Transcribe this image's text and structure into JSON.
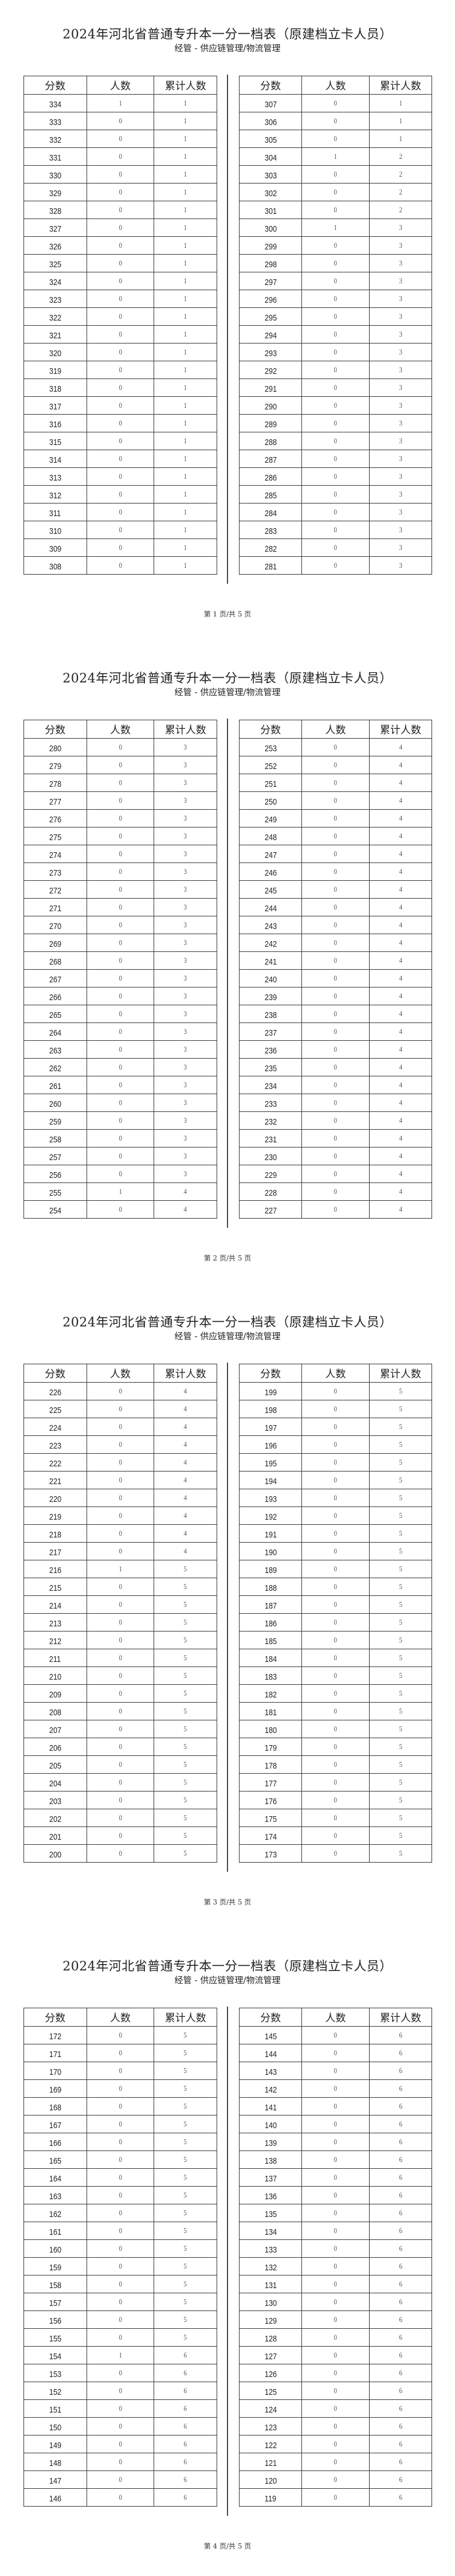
{
  "document": {
    "title": "2024年河北省普通专升本一分一档表（原建档立卡人员）",
    "subtitle": "经管 - 供应链管理/物流管理",
    "columns": [
      "分数",
      "人数",
      "累计人数"
    ]
  },
  "pages": [
    {
      "footer": "第 1 页/共 5 页",
      "left": [
        [
          "334",
          "1",
          "1"
        ],
        [
          "333",
          "0",
          "1"
        ],
        [
          "332",
          "0",
          "1"
        ],
        [
          "331",
          "0",
          "1"
        ],
        [
          "330",
          "0",
          "1"
        ],
        [
          "329",
          "0",
          "1"
        ],
        [
          "328",
          "0",
          "1"
        ],
        [
          "327",
          "0",
          "1"
        ],
        [
          "326",
          "0",
          "1"
        ],
        [
          "325",
          "0",
          "1"
        ],
        [
          "324",
          "0",
          "1"
        ],
        [
          "323",
          "0",
          "1"
        ],
        [
          "322",
          "0",
          "1"
        ],
        [
          "321",
          "0",
          "1"
        ],
        [
          "320",
          "0",
          "1"
        ],
        [
          "319",
          "0",
          "1"
        ],
        [
          "318",
          "0",
          "1"
        ],
        [
          "317",
          "0",
          "1"
        ],
        [
          "316",
          "0",
          "1"
        ],
        [
          "315",
          "0",
          "1"
        ],
        [
          "314",
          "0",
          "1"
        ],
        [
          "313",
          "0",
          "1"
        ],
        [
          "312",
          "0",
          "1"
        ],
        [
          "311",
          "0",
          "1"
        ],
        [
          "310",
          "0",
          "1"
        ],
        [
          "309",
          "0",
          "1"
        ],
        [
          "308",
          "0",
          "1"
        ]
      ],
      "right": [
        [
          "307",
          "0",
          "1"
        ],
        [
          "306",
          "0",
          "1"
        ],
        [
          "305",
          "0",
          "1"
        ],
        [
          "304",
          "1",
          "2"
        ],
        [
          "303",
          "0",
          "2"
        ],
        [
          "302",
          "0",
          "2"
        ],
        [
          "301",
          "0",
          "2"
        ],
        [
          "300",
          "1",
          "3"
        ],
        [
          "299",
          "0",
          "3"
        ],
        [
          "298",
          "0",
          "3"
        ],
        [
          "297",
          "0",
          "3"
        ],
        [
          "296",
          "0",
          "3"
        ],
        [
          "295",
          "0",
          "3"
        ],
        [
          "294",
          "0",
          "3"
        ],
        [
          "293",
          "0",
          "3"
        ],
        [
          "292",
          "0",
          "3"
        ],
        [
          "291",
          "0",
          "3"
        ],
        [
          "290",
          "0",
          "3"
        ],
        [
          "289",
          "0",
          "3"
        ],
        [
          "288",
          "0",
          "3"
        ],
        [
          "287",
          "0",
          "3"
        ],
        [
          "286",
          "0",
          "3"
        ],
        [
          "285",
          "0",
          "3"
        ],
        [
          "284",
          "0",
          "3"
        ],
        [
          "283",
          "0",
          "3"
        ],
        [
          "282",
          "0",
          "3"
        ],
        [
          "281",
          "0",
          "3"
        ]
      ]
    },
    {
      "footer": "第 2 页/共 5 页",
      "left": [
        [
          "280",
          "0",
          "3"
        ],
        [
          "279",
          "0",
          "3"
        ],
        [
          "278",
          "0",
          "3"
        ],
        [
          "277",
          "0",
          "3"
        ],
        [
          "276",
          "0",
          "3"
        ],
        [
          "275",
          "0",
          "3"
        ],
        [
          "274",
          "0",
          "3"
        ],
        [
          "273",
          "0",
          "3"
        ],
        [
          "272",
          "0",
          "3"
        ],
        [
          "271",
          "0",
          "3"
        ],
        [
          "270",
          "0",
          "3"
        ],
        [
          "269",
          "0",
          "3"
        ],
        [
          "268",
          "0",
          "3"
        ],
        [
          "267",
          "0",
          "3"
        ],
        [
          "266",
          "0",
          "3"
        ],
        [
          "265",
          "0",
          "3"
        ],
        [
          "264",
          "0",
          "3"
        ],
        [
          "263",
          "0",
          "3"
        ],
        [
          "262",
          "0",
          "3"
        ],
        [
          "261",
          "0",
          "3"
        ],
        [
          "260",
          "0",
          "3"
        ],
        [
          "259",
          "0",
          "3"
        ],
        [
          "258",
          "0",
          "3"
        ],
        [
          "257",
          "0",
          "3"
        ],
        [
          "256",
          "0",
          "3"
        ],
        [
          "255",
          "1",
          "4"
        ],
        [
          "254",
          "0",
          "4"
        ]
      ],
      "right": [
        [
          "253",
          "0",
          "4"
        ],
        [
          "252",
          "0",
          "4"
        ],
        [
          "251",
          "0",
          "4"
        ],
        [
          "250",
          "0",
          "4"
        ],
        [
          "249",
          "0",
          "4"
        ],
        [
          "248",
          "0",
          "4"
        ],
        [
          "247",
          "0",
          "4"
        ],
        [
          "246",
          "0",
          "4"
        ],
        [
          "245",
          "0",
          "4"
        ],
        [
          "244",
          "0",
          "4"
        ],
        [
          "243",
          "0",
          "4"
        ],
        [
          "242",
          "0",
          "4"
        ],
        [
          "241",
          "0",
          "4"
        ],
        [
          "240",
          "0",
          "4"
        ],
        [
          "239",
          "0",
          "4"
        ],
        [
          "238",
          "0",
          "4"
        ],
        [
          "237",
          "0",
          "4"
        ],
        [
          "236",
          "0",
          "4"
        ],
        [
          "235",
          "0",
          "4"
        ],
        [
          "234",
          "0",
          "4"
        ],
        [
          "233",
          "0",
          "4"
        ],
        [
          "232",
          "0",
          "4"
        ],
        [
          "231",
          "0",
          "4"
        ],
        [
          "230",
          "0",
          "4"
        ],
        [
          "229",
          "0",
          "4"
        ],
        [
          "228",
          "0",
          "4"
        ],
        [
          "227",
          "0",
          "4"
        ]
      ]
    },
    {
      "footer": "第 3 页/共 5 页",
      "left": [
        [
          "226",
          "0",
          "4"
        ],
        [
          "225",
          "0",
          "4"
        ],
        [
          "224",
          "0",
          "4"
        ],
        [
          "223",
          "0",
          "4"
        ],
        [
          "222",
          "0",
          "4"
        ],
        [
          "221",
          "0",
          "4"
        ],
        [
          "220",
          "0",
          "4"
        ],
        [
          "219",
          "0",
          "4"
        ],
        [
          "218",
          "0",
          "4"
        ],
        [
          "217",
          "0",
          "4"
        ],
        [
          "216",
          "1",
          "5"
        ],
        [
          "215",
          "0",
          "5"
        ],
        [
          "214",
          "0",
          "5"
        ],
        [
          "213",
          "0",
          "5"
        ],
        [
          "212",
          "0",
          "5"
        ],
        [
          "211",
          "0",
          "5"
        ],
        [
          "210",
          "0",
          "5"
        ],
        [
          "209",
          "0",
          "5"
        ],
        [
          "208",
          "0",
          "5"
        ],
        [
          "207",
          "0",
          "5"
        ],
        [
          "206",
          "0",
          "5"
        ],
        [
          "205",
          "0",
          "5"
        ],
        [
          "204",
          "0",
          "5"
        ],
        [
          "203",
          "0",
          "5"
        ],
        [
          "202",
          "0",
          "5"
        ],
        [
          "201",
          "0",
          "5"
        ],
        [
          "200",
          "0",
          "5"
        ]
      ],
      "right": [
        [
          "199",
          "0",
          "5"
        ],
        [
          "198",
          "0",
          "5"
        ],
        [
          "197",
          "0",
          "5"
        ],
        [
          "196",
          "0",
          "5"
        ],
        [
          "195",
          "0",
          "5"
        ],
        [
          "194",
          "0",
          "5"
        ],
        [
          "193",
          "0",
          "5"
        ],
        [
          "192",
          "0",
          "5"
        ],
        [
          "191",
          "0",
          "5"
        ],
        [
          "190",
          "0",
          "5"
        ],
        [
          "189",
          "0",
          "5"
        ],
        [
          "188",
          "0",
          "5"
        ],
        [
          "187",
          "0",
          "5"
        ],
        [
          "186",
          "0",
          "5"
        ],
        [
          "185",
          "0",
          "5"
        ],
        [
          "184",
          "0",
          "5"
        ],
        [
          "183",
          "0",
          "5"
        ],
        [
          "182",
          "0",
          "5"
        ],
        [
          "181",
          "0",
          "5"
        ],
        [
          "180",
          "0",
          "5"
        ],
        [
          "179",
          "0",
          "5"
        ],
        [
          "178",
          "0",
          "5"
        ],
        [
          "177",
          "0",
          "5"
        ],
        [
          "176",
          "0",
          "5"
        ],
        [
          "175",
          "0",
          "5"
        ],
        [
          "174",
          "0",
          "5"
        ],
        [
          "173",
          "0",
          "5"
        ]
      ]
    },
    {
      "footer": "第 4 页/共 5 页",
      "left": [
        [
          "172",
          "0",
          "5"
        ],
        [
          "171",
          "0",
          "5"
        ],
        [
          "170",
          "0",
          "5"
        ],
        [
          "169",
          "0",
          "5"
        ],
        [
          "168",
          "0",
          "5"
        ],
        [
          "167",
          "0",
          "5"
        ],
        [
          "166",
          "0",
          "5"
        ],
        [
          "165",
          "0",
          "5"
        ],
        [
          "164",
          "0",
          "5"
        ],
        [
          "163",
          "0",
          "5"
        ],
        [
          "162",
          "0",
          "5"
        ],
        [
          "161",
          "0",
          "5"
        ],
        [
          "160",
          "0",
          "5"
        ],
        [
          "159",
          "0",
          "5"
        ],
        [
          "158",
          "0",
          "5"
        ],
        [
          "157",
          "0",
          "5"
        ],
        [
          "156",
          "0",
          "5"
        ],
        [
          "155",
          "0",
          "5"
        ],
        [
          "154",
          "1",
          "6"
        ],
        [
          "153",
          "0",
          "6"
        ],
        [
          "152",
          "0",
          "6"
        ],
        [
          "151",
          "0",
          "6"
        ],
        [
          "150",
          "0",
          "6"
        ],
        [
          "149",
          "0",
          "6"
        ],
        [
          "148",
          "0",
          "6"
        ],
        [
          "147",
          "0",
          "6"
        ],
        [
          "146",
          "0",
          "6"
        ]
      ],
      "right": [
        [
          "145",
          "0",
          "6"
        ],
        [
          "144",
          "0",
          "6"
        ],
        [
          "143",
          "0",
          "6"
        ],
        [
          "142",
          "0",
          "6"
        ],
        [
          "141",
          "0",
          "6"
        ],
        [
          "140",
          "0",
          "6"
        ],
        [
          "139",
          "0",
          "6"
        ],
        [
          "138",
          "0",
          "6"
        ],
        [
          "137",
          "0",
          "6"
        ],
        [
          "136",
          "0",
          "6"
        ],
        [
          "135",
          "0",
          "6"
        ],
        [
          "134",
          "0",
          "6"
        ],
        [
          "133",
          "0",
          "6"
        ],
        [
          "132",
          "0",
          "6"
        ],
        [
          "131",
          "0",
          "6"
        ],
        [
          "130",
          "0",
          "6"
        ],
        [
          "129",
          "0",
          "6"
        ],
        [
          "128",
          "0",
          "6"
        ],
        [
          "127",
          "0",
          "6"
        ],
        [
          "126",
          "0",
          "6"
        ],
        [
          "125",
          "0",
          "6"
        ],
        [
          "124",
          "0",
          "6"
        ],
        [
          "123",
          "0",
          "6"
        ],
        [
          "122",
          "0",
          "6"
        ],
        [
          "121",
          "0",
          "6"
        ],
        [
          "120",
          "0",
          "6"
        ],
        [
          "119",
          "0",
          "6"
        ]
      ]
    }
  ]
}
